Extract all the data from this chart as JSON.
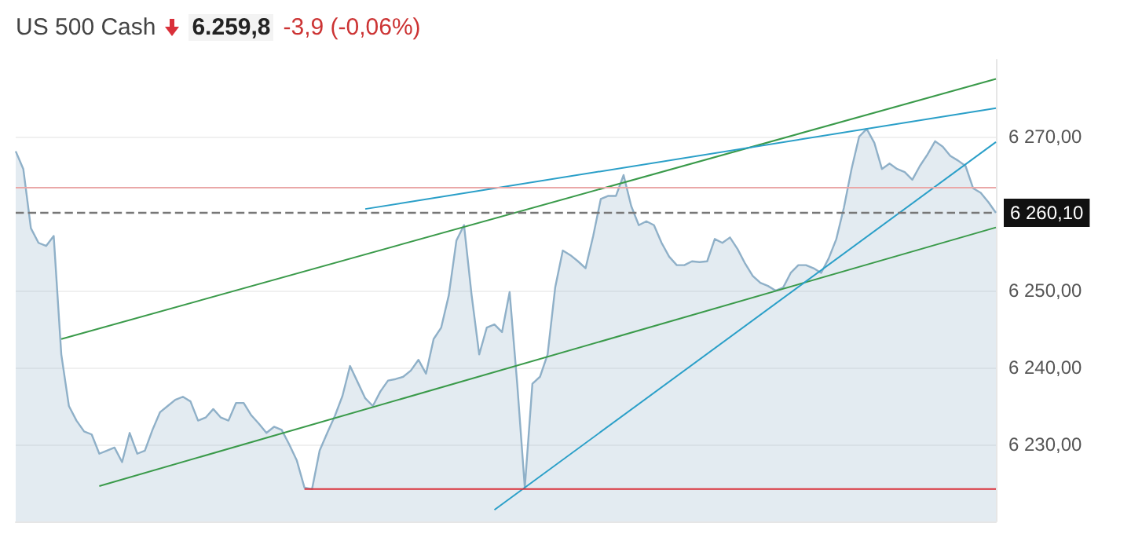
{
  "chart_data": {
    "type": "area",
    "title": "US 500 Cash",
    "annotations": [
      "6.259,8",
      "-3,9 (-0,06%)"
    ],
    "categories": [
      null,
      null,
      null,
      null,
      null,
      null,
      null,
      null,
      null,
      null,
      null,
      null,
      null,
      null,
      null,
      null,
      null,
      null,
      null,
      null,
      null,
      null,
      null,
      null,
      null,
      null,
      null,
      null,
      null,
      null,
      null,
      null,
      null,
      null,
      null,
      null,
      null,
      null,
      null,
      null,
      null,
      null,
      null,
      null,
      null,
      null,
      null,
      null,
      null,
      null,
      null,
      null,
      null,
      null,
      null,
      null,
      null,
      null,
      null,
      null,
      null,
      null,
      null,
      null,
      null,
      null,
      null,
      null,
      null,
      null,
      null,
      null,
      null,
      null,
      null,
      null,
      null,
      null,
      null,
      null,
      null,
      null,
      null,
      null,
      null,
      null,
      null,
      null,
      null,
      null,
      null,
      null,
      null,
      null,
      null,
      null,
      null,
      null,
      null,
      null,
      null,
      null,
      null,
      null,
      null,
      null,
      null,
      null,
      null,
      null,
      null,
      null,
      null,
      null,
      null,
      null,
      null,
      null,
      null,
      null,
      null,
      null,
      null,
      null,
      null,
      null,
      null,
      null,
      null,
      null
    ],
    "series": [
      {
        "color": "#8fb0c8",
        "values": [
          6268.1,
          6265.8,
          6258.1,
          6256.2,
          6255.8,
          6257.1,
          6241.7,
          6235.0,
          6233.1,
          6231.7,
          6231.3,
          6228.8,
          6229.2,
          6229.6,
          6227.7,
          6231.5,
          6228.8,
          6229.2,
          6231.9,
          6234.2,
          6235.0,
          6235.8,
          6236.2,
          6235.6,
          6233.1,
          6233.5,
          6234.6,
          6233.5,
          6233.1,
          6235.4,
          6235.4,
          6233.8,
          6232.7,
          6231.5,
          6232.3,
          6231.9,
          6230.0,
          6227.9,
          6224.4,
          6224.2,
          6229.2,
          6231.5,
          6233.7,
          6236.3,
          6240.2,
          6238.1,
          6236.0,
          6235.0,
          6236.9,
          6238.3,
          6238.5,
          6238.8,
          6239.6,
          6241.0,
          6239.2,
          6243.7,
          6245.2,
          6249.4,
          6256.5,
          6258.5,
          6249.4,
          6241.7,
          6245.2,
          6245.6,
          6244.6,
          6249.8,
          6237.9,
          6224.4,
          6237.9,
          6238.8,
          6241.7,
          6250.4,
          6255.2,
          6254.6,
          6253.8,
          6252.9,
          6257.1,
          6261.9,
          6262.3,
          6262.3,
          6265.0,
          6261.0,
          6258.5,
          6259.0,
          6258.5,
          6256.2,
          6254.4,
          6253.3,
          6253.3,
          6253.8,
          6253.7,
          6253.8,
          6256.7,
          6256.2,
          6256.9,
          6255.4,
          6253.5,
          6251.9,
          6251.0,
          6250.6,
          6250.0,
          6250.4,
          6252.3,
          6253.3,
          6253.3,
          6252.9,
          6252.3,
          6254.2,
          6256.7,
          6260.8,
          6265.8,
          6270.0,
          6271.0,
          6269.2,
          6265.8,
          6266.5,
          6265.8,
          6265.4,
          6264.4,
          6266.2,
          6267.7,
          6269.4,
          6268.7,
          6267.5,
          6266.9,
          6266.2,
          6263.3,
          6262.7,
          6261.5,
          6260.1
        ]
      },
      {
        "type": "line",
        "color": "#3a9a4a",
        "values": [
          null,
          null,
          null,
          null,
          null,
          null,
          6243.7,
          null,
          null,
          null,
          null,
          null,
          null,
          null,
          null,
          null,
          null,
          null,
          null,
          null,
          null,
          null,
          null,
          null,
          null,
          null,
          null,
          null,
          null,
          null,
          null,
          null,
          null,
          null,
          null,
          null,
          null,
          null,
          null,
          null,
          null,
          null,
          null,
          null,
          null,
          null,
          null,
          null,
          null,
          null,
          null,
          null,
          null,
          null,
          null,
          null,
          null,
          null,
          null,
          null,
          null,
          null,
          null,
          null,
          null,
          null,
          null,
          null,
          null,
          null,
          null,
          null,
          null,
          null,
          null,
          null,
          null,
          null,
          null,
          null,
          null,
          null,
          null,
          null,
          null,
          null,
          null,
          null,
          null,
          null,
          null,
          null,
          null,
          null,
          null,
          null,
          null,
          null,
          null,
          null,
          null,
          null,
          null,
          null,
          null,
          null,
          null,
          null,
          null,
          null,
          null,
          null,
          null,
          null,
          null,
          null,
          null,
          null,
          null,
          null,
          null,
          null,
          null,
          null,
          null,
          null,
          null,
          null,
          null,
          6277.5
        ]
      },
      {
        "type": "line",
        "color": "#2a9fc8",
        "values": [
          null,
          null,
          null,
          null,
          null,
          null,
          null,
          null,
          null,
          null,
          null,
          null,
          null,
          null,
          null,
          null,
          null,
          null,
          null,
          null,
          null,
          null,
          null,
          null,
          null,
          null,
          null,
          null,
          null,
          null,
          null,
          null,
          null,
          null,
          null,
          null,
          null,
          null,
          null,
          null,
          null,
          null,
          null,
          null,
          null,
          null,
          6260.6,
          null,
          null,
          null,
          null,
          null,
          null,
          null,
          null,
          null,
          null,
          null,
          null,
          null,
          null,
          null,
          null,
          null,
          null,
          null,
          null,
          null,
          null,
          null,
          null,
          null,
          null,
          null,
          null,
          null,
          null,
          null,
          null,
          null,
          null,
          null,
          null,
          null,
          null,
          null,
          null,
          null,
          null,
          null,
          null,
          null,
          null,
          null,
          null,
          null,
          null,
          null,
          null,
          null,
          null,
          null,
          null,
          null,
          null,
          null,
          null,
          null,
          null,
          null,
          null,
          null,
          null,
          null,
          null,
          null,
          null,
          null,
          null,
          null,
          null,
          null,
          null,
          null,
          null,
          null,
          null,
          null,
          null,
          6273.7
        ]
      },
      {
        "type": "line",
        "color": "#3a9a4a",
        "values": [
          null,
          null,
          null,
          null,
          null,
          null,
          null,
          null,
          null,
          null,
          null,
          6224.6,
          null,
          null,
          null,
          null,
          null,
          null,
          null,
          null,
          null,
          null,
          null,
          null,
          null,
          null,
          null,
          null,
          null,
          null,
          null,
          null,
          null,
          null,
          null,
          null,
          null,
          null,
          null,
          null,
          null,
          null,
          null,
          null,
          null,
          null,
          null,
          null,
          null,
          null,
          null,
          null,
          null,
          null,
          null,
          null,
          null,
          null,
          null,
          null,
          null,
          null,
          null,
          null,
          null,
          null,
          null,
          null,
          null,
          null,
          null,
          null,
          null,
          null,
          null,
          null,
          null,
          null,
          null,
          null,
          null,
          null,
          null,
          null,
          null,
          null,
          null,
          null,
          null,
          null,
          null,
          null,
          null,
          null,
          null,
          null,
          null,
          null,
          null,
          null,
          null,
          null,
          null,
          null,
          null,
          null,
          null,
          null,
          null,
          null,
          null,
          null,
          null,
          null,
          null,
          null,
          null,
          null,
          null,
          null,
          null,
          null,
          null,
          null,
          null,
          null,
          null,
          null,
          null,
          6258.2
        ]
      },
      {
        "type": "line",
        "color": "#2a9fc8",
        "values": [
          null,
          null,
          null,
          null,
          null,
          null,
          null,
          null,
          null,
          null,
          null,
          null,
          null,
          null,
          null,
          null,
          null,
          null,
          null,
          null,
          null,
          null,
          null,
          null,
          null,
          null,
          null,
          null,
          null,
          null,
          null,
          null,
          null,
          null,
          null,
          null,
          null,
          null,
          null,
          null,
          null,
          null,
          null,
          null,
          null,
          null,
          null,
          null,
          null,
          null,
          null,
          null,
          null,
          null,
          null,
          null,
          null,
          null,
          null,
          null,
          null,
          null,
          null,
          6221.5,
          null,
          null,
          null,
          null,
          null,
          null,
          null,
          null,
          null,
          null,
          null,
          null,
          null,
          null,
          null,
          null,
          null,
          null,
          null,
          null,
          null,
          null,
          null,
          null,
          null,
          null,
          null,
          null,
          null,
          null,
          null,
          null,
          null,
          null,
          null,
          null,
          null,
          null,
          null,
          null,
          null,
          null,
          null,
          null,
          null,
          null,
          null,
          null,
          null,
          null,
          null,
          null,
          null,
          null,
          null,
          null,
          null,
          null,
          null,
          null,
          null,
          null,
          null,
          null,
          null,
          6269.3
        ]
      },
      {
        "type": "line",
        "color": "#d9303a",
        "values": [
          null,
          null,
          null,
          null,
          null,
          null,
          null,
          null,
          null,
          null,
          null,
          null,
          null,
          null,
          null,
          null,
          null,
          null,
          null,
          null,
          null,
          null,
          null,
          null,
          null,
          null,
          null,
          null,
          null,
          null,
          null,
          null,
          null,
          null,
          null,
          null,
          null,
          null,
          6224.2,
          null,
          null,
          null,
          null,
          null,
          null,
          null,
          null,
          null,
          null,
          null,
          null,
          null,
          null,
          null,
          null,
          null,
          null,
          null,
          null,
          null,
          null,
          null,
          null,
          null,
          null,
          null,
          null,
          null,
          null,
          null,
          null,
          null,
          null,
          null,
          null,
          null,
          null,
          null,
          null,
          null,
          null,
          null,
          null,
          null,
          null,
          null,
          null,
          null,
          null,
          null,
          null,
          null,
          null,
          null,
          null,
          null,
          null,
          null,
          null,
          null,
          null,
          null,
          null,
          null,
          null,
          null,
          null,
          null,
          null,
          null,
          null,
          null,
          null,
          null,
          null,
          null,
          null,
          null,
          null,
          null,
          null,
          null,
          null,
          null,
          null,
          null,
          null,
          null,
          null,
          6224.2
        ]
      }
    ],
    "ref_lines": [
      {
        "axis": "y",
        "value": 6263.5,
        "color": "#eaa8a8",
        "line_style": "solid"
      },
      {
        "axis": "y",
        "value": 6260.1,
        "label": "6 260,10",
        "color": "#777777",
        "line_style": "dashed"
      }
    ],
    "ylim": [
      6220,
      6280
    ],
    "yticks": [
      {
        "value": 6230,
        "label": "6 230,00"
      },
      {
        "value": 6240,
        "label": "6 240,00"
      },
      {
        "value": 6250,
        "label": "6 250,00"
      },
      {
        "value": 6270,
        "label": "6 270,00"
      }
    ],
    "grid": "y",
    "marker": "none"
  }
}
